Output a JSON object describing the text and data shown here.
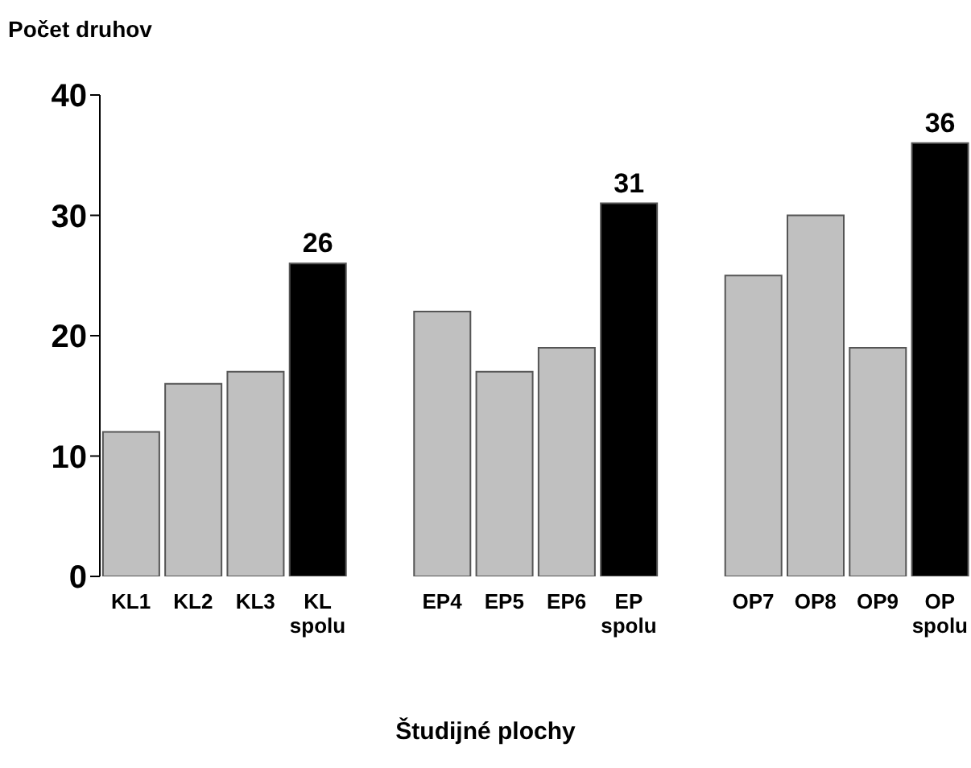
{
  "chart_data": {
    "type": "bar",
    "ylabel": "Počet druhov",
    "xlabel": "Študijné plochy",
    "categories": [
      "KL1",
      "KL2",
      "KL3",
      "KL spolu",
      null,
      "EP4",
      "EP5",
      "EP6",
      "EP spolu",
      null,
      "OP7",
      "OP8",
      "OP9",
      "OP spolu"
    ],
    "values": [
      12,
      16,
      17,
      26,
      null,
      22,
      17,
      19,
      31,
      null,
      25,
      30,
      19,
      36
    ],
    "colors": [
      "#c0c0c0",
      "#c0c0c0",
      "#c0c0c0",
      "#000000",
      null,
      "#c0c0c0",
      "#c0c0c0",
      "#c0c0c0",
      "#000000",
      null,
      "#c0c0c0",
      "#c0c0c0",
      "#c0c0c0",
      "#000000"
    ],
    "value_labels": [
      null,
      null,
      null,
      "26",
      null,
      null,
      null,
      null,
      "31",
      null,
      null,
      null,
      null,
      "36"
    ],
    "ylim": [
      0,
      40
    ],
    "yticks": [
      0,
      10,
      20,
      30,
      40
    ],
    "grid": false,
    "legend": false
  }
}
